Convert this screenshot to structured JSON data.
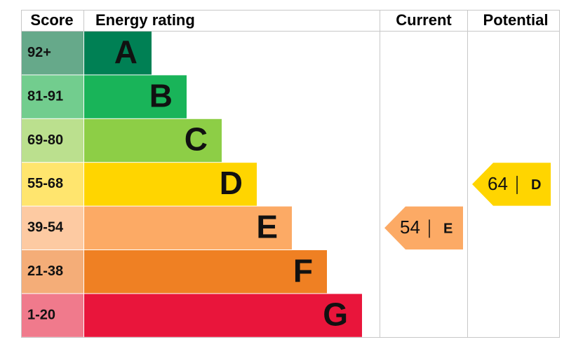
{
  "chart_data": {
    "type": "epc",
    "headers": {
      "score": "Score",
      "rating": "Energy rating",
      "current": "Current",
      "potential": "Potential"
    },
    "bands": [
      {
        "score": "92+",
        "letter": "A",
        "color": "#008054",
        "score_color": "#66a98a"
      },
      {
        "score": "81-91",
        "letter": "B",
        "color": "#19b459",
        "score_color": "#72cd8e"
      },
      {
        "score": "69-80",
        "letter": "C",
        "color": "#8dce46",
        "score_color": "#bbe08e"
      },
      {
        "score": "55-68",
        "letter": "D",
        "color": "#ffd500",
        "score_color": "#ffe56e"
      },
      {
        "score": "39-54",
        "letter": "E",
        "color": "#fcaa65",
        "score_color": "#fdcaa2"
      },
      {
        "score": "21-38",
        "letter": "F",
        "color": "#ef8023",
        "score_color": "#f4ad78"
      },
      {
        "score": "1-20",
        "letter": "G",
        "color": "#e9153b",
        "score_color": "#f07a8c"
      }
    ],
    "current": {
      "value": 54,
      "band": "E"
    },
    "potential": {
      "value": 64,
      "band": "D"
    }
  }
}
